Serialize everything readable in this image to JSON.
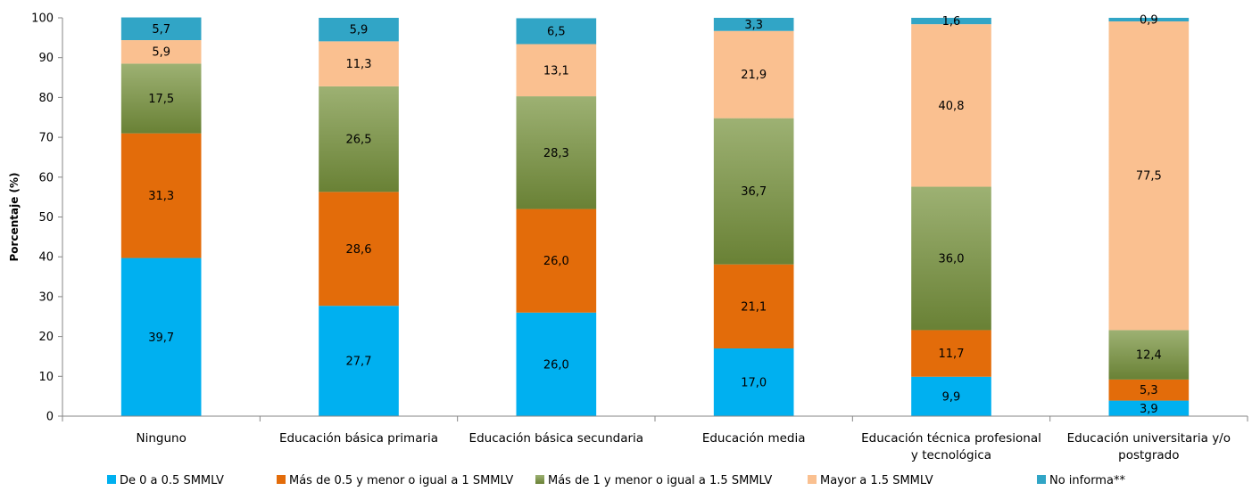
{
  "chart_data": {
    "type": "bar",
    "stacked": true,
    "title": "",
    "xlabel": "",
    "ylabel": "Porcentaje (%)",
    "ylim": [
      0,
      100
    ],
    "yticks": [
      0,
      10,
      20,
      30,
      40,
      50,
      60,
      70,
      80,
      90,
      100
    ],
    "grid": false,
    "legend_position": "bottom",
    "categories": [
      [
        "Ninguno"
      ],
      [
        "Educación básica primaria"
      ],
      [
        "Educación básica secundaria"
      ],
      [
        "Educación media"
      ],
      [
        "Educación técnica profesional",
        "y tecnológica"
      ],
      [
        "Educación universitaria y/o",
        "postgrado"
      ]
    ],
    "series": [
      {
        "name": "De 0 a 0.5 SMMLV",
        "color": "#00B0F0",
        "values": [
          39.7,
          27.7,
          26.0,
          17.0,
          9.9,
          3.9
        ],
        "labels": [
          "39,7",
          "27,7",
          "26,0",
          "17,0",
          "9,9",
          "3,9"
        ]
      },
      {
        "name": "Más de 0.5 y menor o igual a 1 SMMLV",
        "color": "#E36C0A",
        "values": [
          31.3,
          28.6,
          26.0,
          21.1,
          11.7,
          5.3
        ],
        "labels": [
          "31,3",
          "28,6",
          "26,0",
          "21,1",
          "11,7",
          "5,3"
        ]
      },
      {
        "name": "Más de 1 y menor o igual a 1.5 SMMLV",
        "color": "#77933C",
        "values": [
          17.5,
          26.5,
          28.3,
          36.7,
          36.0,
          12.4
        ],
        "labels": [
          "17,5",
          "26,5",
          "28,3",
          "36,7",
          "36,0",
          "12,4"
        ]
      },
      {
        "name": "Mayor a 1.5 SMMLV",
        "color": "#FAC090",
        "values": [
          5.9,
          11.3,
          13.1,
          21.9,
          40.8,
          77.5
        ],
        "labels": [
          "5,9",
          "11,3",
          "13,1",
          "21,9",
          "40,8",
          "77,5"
        ]
      },
      {
        "name": "No informa**",
        "color": "#31A5C6",
        "values": [
          5.7,
          5.9,
          6.5,
          3.3,
          1.6,
          0.9
        ],
        "labels": [
          "5,7",
          "5,9",
          "6,5",
          "3,3",
          "1,6",
          "0,9"
        ]
      }
    ]
  }
}
